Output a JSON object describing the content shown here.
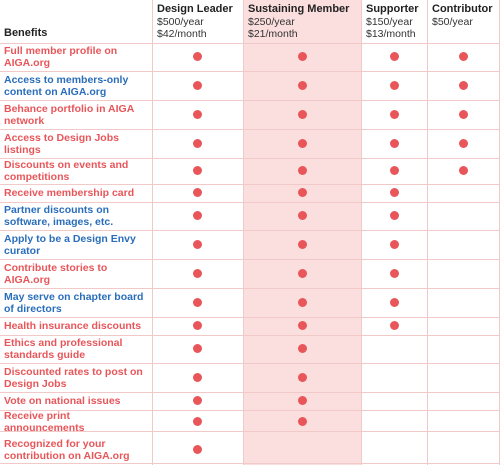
{
  "header": {
    "benefits_label": "Benefits",
    "tiers": [
      {
        "name": "Design Leader",
        "price_year": "$500/year",
        "price_month": "$42/month"
      },
      {
        "name": "Sustaining Member",
        "price_year": "$250/year",
        "price_month": "$21/month"
      },
      {
        "name": "Supporter",
        "price_year": "$150/year",
        "price_month": "$13/month"
      },
      {
        "name": "Contributor",
        "price_year": "$50/year",
        "price_month": ""
      }
    ]
  },
  "colors": {
    "red": "#e8565a",
    "blue": "#2a6ebb",
    "highlight": "#fbdede",
    "grid": "#f1c9c9"
  },
  "rows": [
    {
      "label": "Full member profile on AIGA.org",
      "color": "red",
      "tiers": [
        true,
        true,
        true,
        true
      ]
    },
    {
      "label": "Access to members-only content on AIGA.org",
      "color": "blue",
      "tiers": [
        true,
        true,
        true,
        true
      ]
    },
    {
      "label": "Behance portfolio in AIGA network",
      "color": "red",
      "tiers": [
        true,
        true,
        true,
        true
      ]
    },
    {
      "label": "Access to Design Jobs listings",
      "color": "red",
      "tiers": [
        true,
        true,
        true,
        true
      ]
    },
    {
      "label": "Discounts on events and competitions",
      "color": "red",
      "tiers": [
        true,
        true,
        true,
        true
      ]
    },
    {
      "label": "Receive membership card",
      "color": "red",
      "tiers": [
        true,
        true,
        true,
        false
      ]
    },
    {
      "label": "Partner discounts on software, images, etc.",
      "color": "blue",
      "tiers": [
        true,
        true,
        true,
        false
      ]
    },
    {
      "label": "Apply to be a Design Envy curator",
      "color": "blue",
      "tiers": [
        true,
        true,
        true,
        false
      ]
    },
    {
      "label": "Contribute stories to AIGA.org",
      "color": "red",
      "tiers": [
        true,
        true,
        true,
        false
      ]
    },
    {
      "label": "May serve on chapter board of directors",
      "color": "blue",
      "tiers": [
        true,
        true,
        true,
        false
      ]
    },
    {
      "label": "Health insurance discounts",
      "color": "red",
      "tiers": [
        true,
        true,
        true,
        false
      ]
    },
    {
      "label": "Ethics and professional standards guide",
      "color": "red",
      "tiers": [
        true,
        true,
        false,
        false
      ]
    },
    {
      "label": "Discounted rates to post on Design Jobs",
      "color": "red",
      "tiers": [
        true,
        true,
        false,
        false
      ]
    },
    {
      "label": "Vote on national issues",
      "color": "red",
      "tiers": [
        true,
        true,
        false,
        false
      ]
    },
    {
      "label": "Receive print announcements",
      "color": "red",
      "tiers": [
        true,
        true,
        false,
        false
      ]
    },
    {
      "label": "Recognized for your contribution on AIGA.org",
      "color": "red",
      "tiers": [
        true,
        false,
        false,
        false
      ]
    }
  ]
}
